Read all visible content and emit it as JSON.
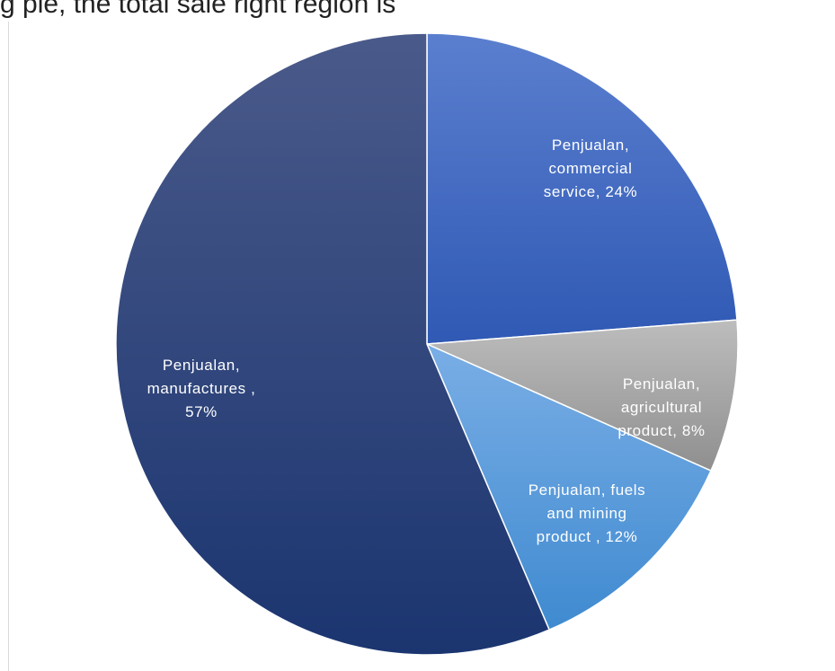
{
  "caption_fragment": "g pie, the total sale right region is",
  "chart_data": {
    "type": "pie",
    "title": "",
    "start_angle_deg": 0,
    "direction": "clockwise",
    "slices": [
      {
        "label_lines": [
          "Penjualan,",
          "commercial",
          "service, 24%"
        ],
        "value": 24,
        "color_top": "#5b7fcf",
        "color_bottom": "#2f59b4",
        "text_color": "#ffffff"
      },
      {
        "label_lines": [
          "Penjualan,",
          "agricultural",
          "product, 8%"
        ],
        "value": 8,
        "color_top": "#bdbdbd",
        "color_bottom": "#8f8f8f",
        "text_color": "#ffffff"
      },
      {
        "label_lines": [
          "Penjualan, fuels",
          "and mining",
          "product , 12%"
        ],
        "value": 12,
        "color_top": "#7aaee6",
        "color_bottom": "#3f8ad0",
        "text_color": "#ffffff"
      },
      {
        "label_lines": [
          "Penjualan,",
          "manufactures ,",
          "57%"
        ],
        "value": 57,
        "color_top": "#4a5a8a",
        "color_bottom": "#1b3570",
        "text_color": "#ffffff"
      }
    ]
  }
}
